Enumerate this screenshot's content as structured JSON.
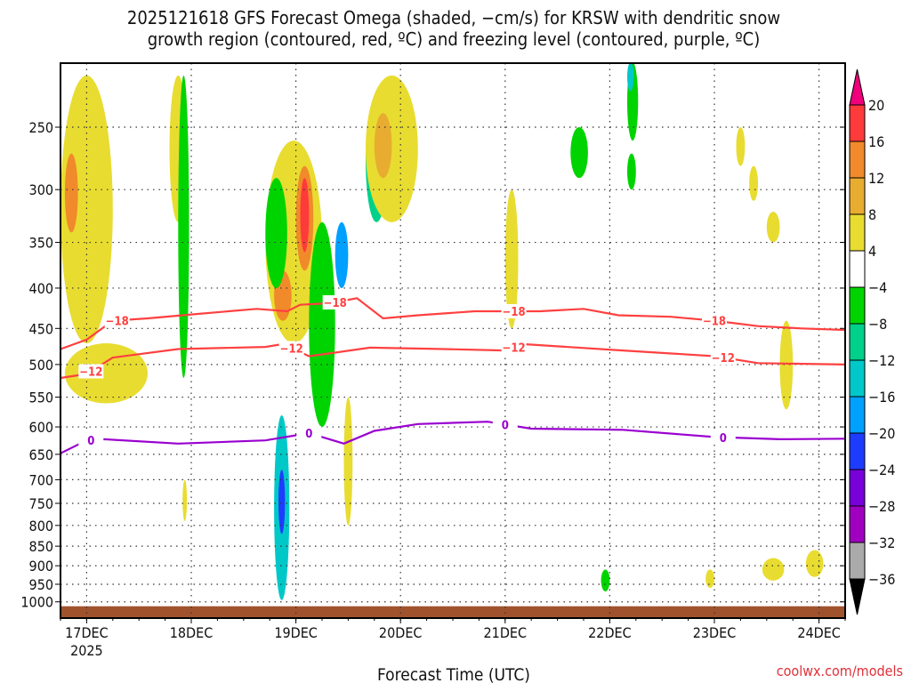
{
  "chart_data": {
    "type": "heatmap",
    "title": [
      "2025121618 GFS Forecast Omega (shaded, −cm/s) for KRSW with dendritic snow",
      "growth region (contoured, red, ºC) and freezing level (contoured, purple, ºC)"
    ],
    "xlabel": "Forecast Time (UTC)",
    "ylabel": "",
    "x_units": "forecast hours from 2025121618",
    "xlim": [
      0,
      180
    ],
    "ylim_hPa": [
      1047,
      207
    ],
    "y_scale": "log",
    "x_ticks": [
      {
        "hour": 6,
        "label": "17DEC",
        "sub": "2025"
      },
      {
        "hour": 30,
        "label": "18DEC"
      },
      {
        "hour": 54,
        "label": "19DEC"
      },
      {
        "hour": 78,
        "label": "20DEC"
      },
      {
        "hour": 102,
        "label": "21DEC"
      },
      {
        "hour": 126,
        "label": "22DEC"
      },
      {
        "hour": 150,
        "label": "23DEC"
      },
      {
        "hour": 174,
        "label": "24DEC"
      }
    ],
    "y_ticks": [
      250,
      300,
      350,
      400,
      450,
      500,
      550,
      600,
      650,
      700,
      750,
      800,
      850,
      900,
      950,
      1000
    ],
    "colorbar": {
      "labels": [
        "20",
        "16",
        "12",
        "8",
        "4",
        "−4",
        "−8",
        "−12",
        "−16",
        "−20",
        "−24",
        "−28",
        "−32",
        "−36"
      ],
      "colors": [
        "#ff3a3a",
        "#f08a2a",
        "#e8ac30",
        "#e8dc30",
        "#ffffff",
        "#00d400",
        "#00d18a",
        "#00c8c8",
        "#00a0ff",
        "#1e3cff",
        "#7800d8",
        "#a000c0",
        "#aaaaaa"
      ],
      "over": "#f0007a",
      "under": "#000000"
    },
    "contours": [
      {
        "name": "-18",
        "color": "#ff4040",
        "label": "−18",
        "label_hours": [
          13,
          63,
          104,
          150
        ],
        "points": [
          [
            0,
            478
          ],
          [
            6,
            465
          ],
          [
            12,
            440
          ],
          [
            20,
            437
          ],
          [
            30,
            432
          ],
          [
            45,
            425
          ],
          [
            52,
            428
          ],
          [
            55,
            420
          ],
          [
            62,
            418
          ],
          [
            68,
            412
          ],
          [
            74,
            437
          ],
          [
            82,
            433
          ],
          [
            95,
            428
          ],
          [
            110,
            428
          ],
          [
            120,
            425
          ],
          [
            128,
            433
          ],
          [
            140,
            435
          ],
          [
            150,
            440
          ],
          [
            160,
            447
          ],
          [
            170,
            450
          ],
          [
            180,
            452
          ]
        ]
      },
      {
        "name": "-12",
        "color": "#ff4040",
        "label": "−12",
        "label_hours": [
          7,
          53,
          104,
          152
        ],
        "points": [
          [
            0,
            520
          ],
          [
            6,
            514
          ],
          [
            12,
            490
          ],
          [
            27,
            478
          ],
          [
            47,
            475
          ],
          [
            51,
            471
          ],
          [
            57,
            488
          ],
          [
            63,
            483
          ],
          [
            71,
            476
          ],
          [
            88,
            478
          ],
          [
            102,
            480
          ],
          [
            106,
            471
          ],
          [
            129,
            480
          ],
          [
            150,
            488
          ],
          [
            160,
            498
          ],
          [
            180,
            500
          ]
        ]
      },
      {
        "name": "0",
        "color": "#9a00d0",
        "label": "0",
        "label_hours": [
          7,
          57,
          102,
          152
        ],
        "points": [
          [
            0,
            648
          ],
          [
            6,
            624
          ],
          [
            10,
            622
          ],
          [
            27,
            630
          ],
          [
            47,
            624
          ],
          [
            57,
            611
          ],
          [
            65,
            630
          ],
          [
            72,
            607
          ],
          [
            82,
            595
          ],
          [
            98,
            591
          ],
          [
            108,
            603
          ],
          [
            129,
            605
          ],
          [
            150,
            618
          ],
          [
            165,
            622
          ],
          [
            180,
            621
          ]
        ]
      }
    ],
    "omega_features": [
      {
        "t": [
          0,
          12
        ],
        "p": [
          215,
          470
        ],
        "value": 4
      },
      {
        "t": [
          1,
          4
        ],
        "p": [
          270,
          340
        ],
        "value": 12
      },
      {
        "t": [
          1,
          20
        ],
        "p": [
          470,
          560
        ],
        "value": 4
      },
      {
        "t": [
          25,
          29
        ],
        "p": [
          215,
          330
        ],
        "value": 4
      },
      {
        "t": [
          27,
          29.5
        ],
        "p": [
          215,
          520
        ],
        "value": -4
      },
      {
        "t": [
          28,
          29
        ],
        "p": [
          700,
          790
        ],
        "value": 4
      },
      {
        "t": [
          47,
          60
        ],
        "p": [
          260,
          470
        ],
        "value": 4
      },
      {
        "t": [
          49,
          53
        ],
        "p": [
          380,
          440
        ],
        "value": 16
      },
      {
        "t": [
          54,
          58
        ],
        "p": [
          280,
          380
        ],
        "value": 12
      },
      {
        "t": [
          55,
          57
        ],
        "p": [
          290,
          360
        ],
        "value": 20
      },
      {
        "t": [
          47,
          52
        ],
        "p": [
          290,
          400
        ],
        "value": -4
      },
      {
        "t": [
          49,
          52.5
        ],
        "p": [
          580,
          995
        ],
        "value": -12
      },
      {
        "t": [
          50,
          51.5
        ],
        "p": [
          680,
          820
        ],
        "value": -20
      },
      {
        "t": [
          57,
          63
        ],
        "p": [
          330,
          600
        ],
        "value": -4
      },
      {
        "t": [
          63,
          66
        ],
        "p": [
          330,
          400
        ],
        "value": -16
      },
      {
        "t": [
          70,
          75
        ],
        "p": [
          230,
          330
        ],
        "value": -8
      },
      {
        "t": [
          72,
          74
        ],
        "p": [
          240,
          300
        ],
        "value": -16
      },
      {
        "t": [
          70,
          82
        ],
        "p": [
          215,
          330
        ],
        "value": 4
      },
      {
        "t": [
          72,
          76
        ],
        "p": [
          240,
          290
        ],
        "value": 8
      },
      {
        "t": [
          65,
          67
        ],
        "p": [
          550,
          800
        ],
        "value": 4
      },
      {
        "t": [
          102,
          105
        ],
        "p": [
          300,
          450
        ],
        "value": 4
      },
      {
        "t": [
          117,
          121
        ],
        "p": [
          250,
          290
        ],
        "value": -4
      },
      {
        "t": [
          130,
          132.5
        ],
        "p": [
          207,
          260
        ],
        "value": -4
      },
      {
        "t": [
          130,
          131.5
        ],
        "p": [
          207,
          225
        ],
        "value": -12
      },
      {
        "t": [
          130,
          132
        ],
        "p": [
          270,
          300
        ],
        "value": -4
      },
      {
        "t": [
          124,
          126
        ],
        "p": [
          910,
          970
        ],
        "value": -4
      },
      {
        "t": [
          148,
          150
        ],
        "p": [
          910,
          960
        ],
        "value": 4
      },
      {
        "t": [
          162,
          165
        ],
        "p": [
          320,
          350
        ],
        "value": 4
      },
      {
        "t": [
          165,
          168
        ],
        "p": [
          440,
          570
        ],
        "value": 4
      },
      {
        "t": [
          161,
          166
        ],
        "p": [
          880,
          940
        ],
        "value": 4
      },
      {
        "t": [
          171,
          175
        ],
        "p": [
          860,
          930
        ],
        "value": 4
      },
      {
        "t": [
          155,
          157
        ],
        "p": [
          250,
          280
        ],
        "value": 4
      },
      {
        "t": [
          158,
          160
        ],
        "p": [
          280,
          310
        ],
        "value": 4
      }
    ],
    "ground_color": "#a0522d"
  },
  "footer": "coolwx.com/models"
}
